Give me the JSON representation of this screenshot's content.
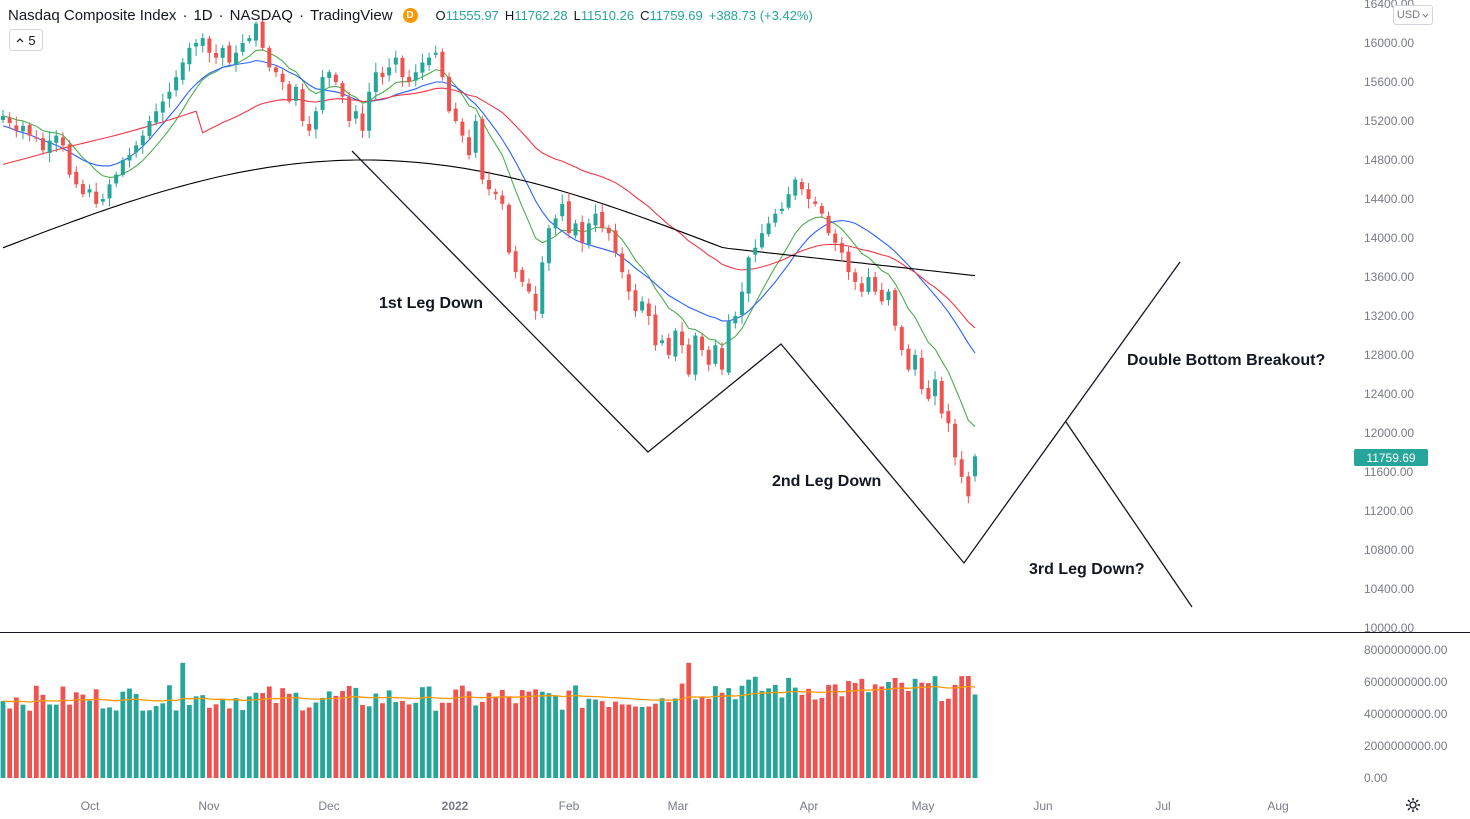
{
  "header": {
    "symbol": "Nasdaq Composite Index",
    "interval": "1D",
    "exchange": "NASDAQ",
    "source": "TradingView",
    "badge": "D",
    "open_label": "O",
    "open": "11555.97",
    "high_label": "H",
    "high": "11762.28",
    "low_label": "L",
    "low": "11510.26",
    "close_label": "C",
    "close": "11759.69",
    "change": "+388.73 (+3.42%)",
    "interval_box": "5",
    "currency": "USD"
  },
  "last_price_label": "11759.69",
  "colors": {
    "up": "#26a69a",
    "down": "#ef5350",
    "ma_green": "#4caf50",
    "ma_blue": "#2962ff",
    "ma_red": "#f23645",
    "ma_black": "#000000",
    "vol_ma": "#ff9800"
  },
  "annotations": {
    "leg1": "1st Leg Down",
    "leg2": "2nd Leg Down",
    "leg3": "3rd Leg Down?",
    "breakout": "Double Bottom Breakout?"
  },
  "price_axis": [
    "16400.00",
    "16000.00",
    "15600.00",
    "15200.00",
    "14800.00",
    "14400.00",
    "14000.00",
    "13600.00",
    "13200.00",
    "12800.00",
    "12400.00",
    "12000.00",
    "11600.00",
    "11200.00",
    "10800.00",
    "10400.00",
    "10000.00"
  ],
  "volume_axis": [
    "8000000000.00",
    "6000000000.00",
    "4000000000.00",
    "2000000000.00",
    "0.00"
  ],
  "time_axis": [
    {
      "label": "Oct",
      "bold": false
    },
    {
      "label": "Nov",
      "bold": false
    },
    {
      "label": "Dec",
      "bold": false
    },
    {
      "label": "2022",
      "bold": true
    },
    {
      "label": "Feb",
      "bold": false
    },
    {
      "label": "Mar",
      "bold": false
    },
    {
      "label": "Apr",
      "bold": false
    },
    {
      "label": "May",
      "bold": false
    },
    {
      "label": "Jun",
      "bold": false
    },
    {
      "label": "Jul",
      "bold": false
    },
    {
      "label": "Aug",
      "bold": false
    }
  ],
  "chart_data": {
    "type": "candlestick",
    "title": "Nasdaq Composite Index · 1D · NASDAQ",
    "ylim": [
      10000,
      16400
    ],
    "volume_ylim": [
      0,
      8000000000
    ],
    "close_series": [
      15250,
      15180,
      15100,
      15150,
      15050,
      15020,
      14900,
      15000,
      15050,
      14950,
      14650,
      14550,
      14450,
      14500,
      14350,
      14400,
      14550,
      14650,
      14800,
      14850,
      14950,
      15050,
      15200,
      15300,
      15400,
      15500,
      15650,
      15800,
      15950,
      16000,
      16050,
      15900,
      15850,
      15950,
      15800,
      15900,
      16000,
      16050,
      16200,
      15950,
      15750,
      15700,
      15600,
      15400,
      15550,
      15200,
      15100,
      15300,
      15650,
      15700,
      15600,
      15450,
      15200,
      15300,
      15100,
      15500,
      15700,
      15650,
      15750,
      15850,
      15650,
      15600,
      15700,
      15800,
      15850,
      15900,
      15650,
      15300,
      15200,
      15050,
      14850,
      15200,
      14600,
      14500,
      14450,
      14350,
      13850,
      13650,
      13550,
      13450,
      13250,
      13750,
      14100,
      14200,
      14350,
      14050,
      14150,
      13950,
      14150,
      14250,
      14100,
      14050,
      13850,
      13650,
      13450,
      13250,
      13350,
      13200,
      12900,
      12950,
      12800,
      13050,
      12900,
      12600,
      13000,
      12850,
      12700,
      12900,
      12650,
      13150,
      13200,
      13450,
      13800,
      13900,
      14050,
      14150,
      14250,
      14300,
      14450,
      14600,
      14500,
      14400,
      14350,
      14250,
      14050,
      13950,
      13850,
      13650,
      13550,
      13450,
      13600,
      13450,
      13350,
      13450,
      13100,
      12850,
      12650,
      12800,
      12450,
      12350,
      12550,
      12200,
      12100,
      11750,
      11550,
      11350,
      11760
    ],
    "ma_20": [
      15150,
      15130,
      15100,
      15080,
      15060,
      15030,
      15000,
      14980,
      14950,
      14920,
      14880,
      14840,
      14800,
      14770,
      14750,
      14740,
      14740,
      14760,
      14790,
      14830,
      14880,
      14940,
      15010,
      15090,
      15170,
      15250,
      15330,
      15420,
      15510,
      15580,
      15640,
      15690,
      15720,
      15750,
      15770,
      15780,
      15790,
      15800,
      15820,
      15810,
      15790,
      15770,
      15740,
      15700,
      15670,
      15620,
      15570,
      15530,
      15520,
      15510,
      15500,
      15480,
      15450,
      15420,
      15400,
      15400,
      15410,
      15420,
      15440,
      15470,
      15490,
      15510,
      15530,
      15560,
      15580,
      15600,
      15600,
      15580,
      15550,
      15500,
      15430,
      15370,
      15290,
      15200,
      15110,
      15010,
      14900,
      14780,
      14650,
      14520,
      14380,
      14270,
      14180,
      14120,
      14070,
      14020,
      13980,
      13950,
      13930,
      13910,
      13890,
      13870,
      13850,
      13800,
      13750,
      13690,
      13640,
      13590,
      13530,
      13470,
      13410,
      13370,
      13330,
      13290,
      13260,
      13230,
      13200,
      13180,
      13150,
      13150,
      13170,
      13200,
      13250,
      13320,
      13390,
      13470,
      13550,
      13640,
      13730,
      13830,
      13920,
      14000,
      14060,
      14110,
      14150,
      14170,
      14180,
      14170,
      14150,
      14110,
      14070,
      14020,
      13970,
      13920,
      13860,
      13790,
      13720,
      13650,
      13570,
      13490,
      13410,
      13330,
      13240,
      13140,
      13030,
      12920,
      12820
    ]
  }
}
